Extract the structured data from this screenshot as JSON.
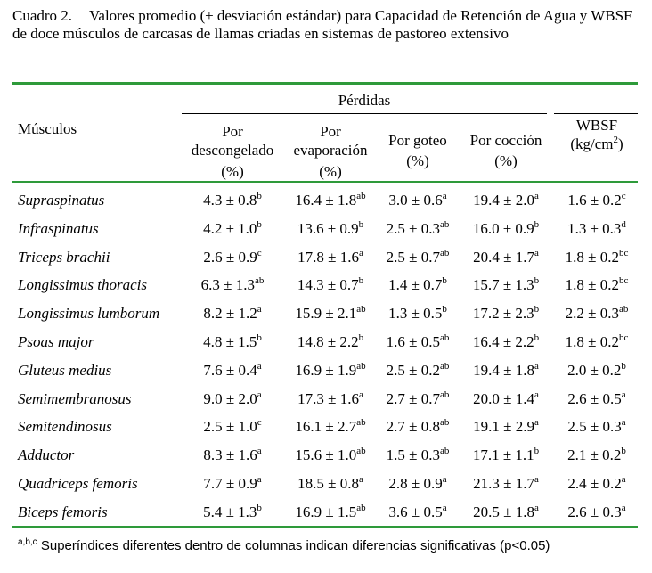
{
  "caption": {
    "label": "Cuadro 2.",
    "text": "Valores promedio (± desviación estándar) para Capacidad de Retención de Agua y WBSF de doce músculos de carcasas de llamas criadas en sistemas de pastoreo extensivo"
  },
  "header": {
    "muscles": "Músculos",
    "perdidas": "Pérdidas",
    "col1": [
      "Por",
      "descongelado",
      "(%)"
    ],
    "col2": [
      "Por",
      "evaporación",
      "(%)"
    ],
    "col3": [
      "Por goteo",
      "(%)"
    ],
    "col4": [
      "Por cocción",
      "(%)"
    ],
    "col5_line1": "WBSF",
    "col5_unit": "(kg/cm",
    "col5_exp": "2",
    "col5_close": ")"
  },
  "rows": [
    {
      "muscle": "Supraspinatus",
      "vals": [
        [
          "4.3 ± 0.8",
          "b"
        ],
        [
          "16.4 ± 1.8",
          "ab"
        ],
        [
          "3.0 ± 0.6",
          "a"
        ],
        [
          "19.4 ± 2.0",
          "a"
        ],
        [
          "1.6 ± 0.2",
          "c"
        ]
      ]
    },
    {
      "muscle": "Infraspinatus",
      "vals": [
        [
          "4.2 ± 1.0",
          "b"
        ],
        [
          "13.6 ± 0.9",
          "b"
        ],
        [
          "2.5 ± 0.3",
          "ab"
        ],
        [
          "16.0 ± 0.9",
          "b"
        ],
        [
          "1.3 ± 0.3",
          "d"
        ]
      ]
    },
    {
      "muscle": "Triceps brachii",
      "vals": [
        [
          "2.6 ± 0.9",
          "c"
        ],
        [
          "17.8 ± 1.6",
          "a"
        ],
        [
          "2.5 ± 0.7",
          "ab"
        ],
        [
          "20.4 ± 1.7",
          "a"
        ],
        [
          "1.8 ± 0.2",
          "bc"
        ]
      ]
    },
    {
      "muscle": "Longissimus thoracis",
      "vals": [
        [
          "6.3 ± 1.3",
          "ab"
        ],
        [
          "14.3 ± 0.7",
          "b"
        ],
        [
          "1.4 ± 0.7",
          "b"
        ],
        [
          "15.7 ± 1.3",
          "b"
        ],
        [
          "1.8 ± 0.2",
          "bc"
        ]
      ]
    },
    {
      "muscle": "Longissimus lumborum",
      "vals": [
        [
          "8.2 ± 1.2",
          "a"
        ],
        [
          "15.9 ± 2.1",
          "ab"
        ],
        [
          "1.3 ± 0.5",
          "b"
        ],
        [
          "17.2 ± 2.3",
          "b"
        ],
        [
          "2.2 ± 0.3",
          "ab"
        ]
      ]
    },
    {
      "muscle": "Psoas major",
      "vals": [
        [
          "4.8 ± 1.5",
          "b"
        ],
        [
          "14.8 ± 2.2",
          "b"
        ],
        [
          "1.6 ± 0.5",
          "ab"
        ],
        [
          "16.4 ± 2.2",
          "b"
        ],
        [
          "1.8 ± 0.2",
          "bc"
        ]
      ]
    },
    {
      "muscle": "Gluteus medius",
      "vals": [
        [
          "7.6 ± 0.4",
          "a"
        ],
        [
          "16.9 ± 1.9",
          "ab"
        ],
        [
          "2.5 ± 0.2",
          "ab"
        ],
        [
          "19.4 ± 1.8",
          "a"
        ],
        [
          "2.0 ± 0.2",
          "b"
        ]
      ]
    },
    {
      "muscle": "Semimembranosus",
      "vals": [
        [
          "9.0 ± 2.0",
          "a"
        ],
        [
          "17.3 ± 1.6",
          "a"
        ],
        [
          "2.7 ± 0.7",
          "ab"
        ],
        [
          "20.0 ± 1.4",
          "a"
        ],
        [
          "2.6 ± 0.5",
          "a"
        ]
      ]
    },
    {
      "muscle": "Semitendinosus",
      "vals": [
        [
          "2.5 ± 1.0",
          "c"
        ],
        [
          "16.1 ± 2.7",
          "ab"
        ],
        [
          "2.7 ± 0.8",
          "ab"
        ],
        [
          "19.1 ± 2.9",
          "a"
        ],
        [
          "2.5 ± 0.3",
          "a"
        ]
      ]
    },
    {
      "muscle": "Adductor",
      "vals": [
        [
          "8.3 ± 1.6",
          "a"
        ],
        [
          "15.6 ± 1.0",
          "ab"
        ],
        [
          "1.5 ± 0.3",
          "ab"
        ],
        [
          "17.1 ± 1.1",
          "b"
        ],
        [
          "2.1 ± 0.2",
          "b"
        ]
      ]
    },
    {
      "muscle": "Quadriceps femoris",
      "vals": [
        [
          "7.7 ± 0.9",
          "a"
        ],
        [
          "18.5 ± 0.8",
          "a"
        ],
        [
          "2.8 ± 0.9",
          "a"
        ],
        [
          "21.3 ± 1.7",
          "a"
        ],
        [
          "2.4 ± 0.2",
          "a"
        ]
      ]
    },
    {
      "muscle": "Biceps femoris",
      "vals": [
        [
          "5.4 ± 1.3",
          "b"
        ],
        [
          "16.9 ± 1.5",
          "ab"
        ],
        [
          "3.6 ± 0.5",
          "a"
        ],
        [
          "20.5 ± 1.8",
          "a"
        ],
        [
          "2.6 ± 0.3",
          "a"
        ]
      ]
    }
  ],
  "footnote": {
    "sup": "a,b,c",
    "text": " Superíndices diferentes dentro de columnas indican diferencias significativas (p<0.05)"
  }
}
